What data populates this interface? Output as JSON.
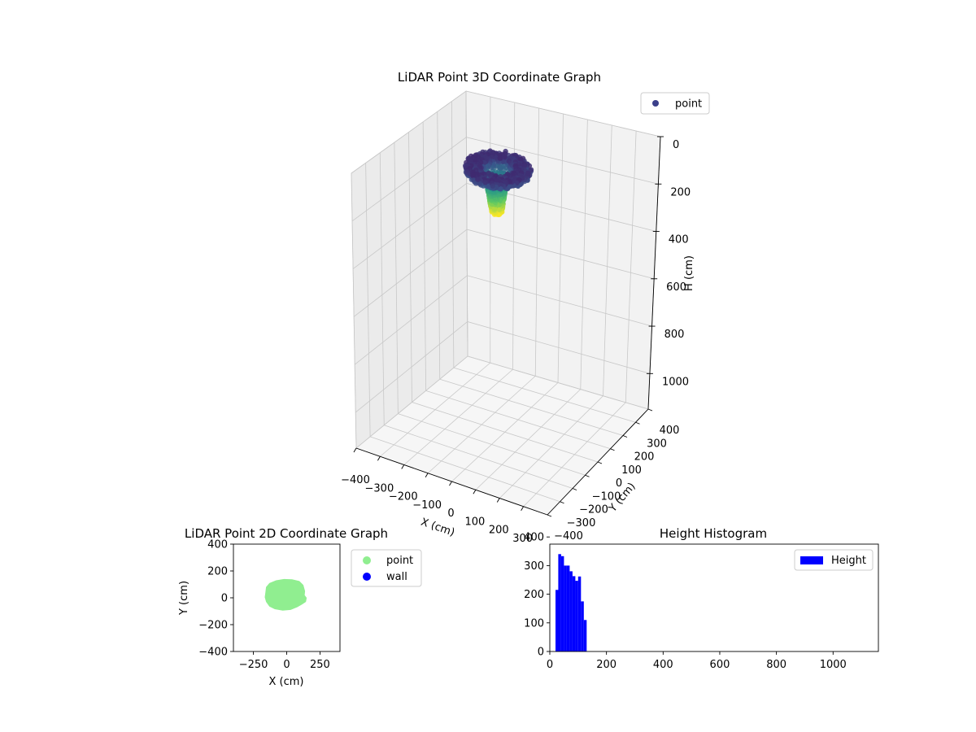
{
  "chart_data": [
    {
      "type": "scatter",
      "projection": "3d",
      "title": "LiDAR Point 3D Coordinate Graph",
      "xlabel": "X (cm)",
      "ylabel": "Y (cm)",
      "zlabel": "H (cm)",
      "xlim": [
        -400,
        400
      ],
      "ylim": [
        -400,
        400
      ],
      "zlim": [
        1150,
        0
      ],
      "z_inverted": true,
      "x_ticks": [
        "−400",
        "−300",
        "−200",
        "−100",
        "0",
        "100",
        "200",
        "300"
      ],
      "y_ticks": [
        "−400",
        "−300",
        "−200",
        "−100",
        "0",
        "100",
        "200",
        "300",
        "400"
      ],
      "z_ticks": [
        "0",
        "200",
        "400",
        "600",
        "800",
        "1000"
      ],
      "grid": true,
      "colormap": "viridis",
      "legend": {
        "placement": "top-right",
        "entries": [
          {
            "label": "point",
            "color": "#3b3f8a"
          }
        ]
      },
      "cloud": {
        "rim_radius": 120,
        "rim_height_range": [
          30,
          90
        ],
        "hole_radius": 60,
        "trunk_radius": 40,
        "trunk_height_range": [
          90,
          240
        ]
      }
    },
    {
      "type": "scatter",
      "title": "LiDAR Point 2D Coordinate Graph",
      "xlabel": "X (cm)",
      "ylabel": "Y (cm)",
      "xlim": [
        -400,
        400
      ],
      "ylim": [
        -400,
        400
      ],
      "x_ticks": [
        "−250",
        "0",
        "250"
      ],
      "y_ticks": [
        "−400",
        "−200",
        "0",
        "200",
        "400"
      ],
      "legend": {
        "placement": "outside-right",
        "entries": [
          {
            "label": "point",
            "color": "#90ee90"
          },
          {
            "label": "wall",
            "color": "#0000ff"
          }
        ]
      },
      "outline": [
        [
          -160,
          40
        ],
        [
          -155,
          80
        ],
        [
          -130,
          110
        ],
        [
          -80,
          130
        ],
        [
          -20,
          140
        ],
        [
          40,
          138
        ],
        [
          95,
          125
        ],
        [
          125,
          95
        ],
        [
          138,
          50
        ],
        [
          135,
          20
        ],
        [
          150,
          0
        ],
        [
          145,
          -30
        ],
        [
          115,
          -50
        ],
        [
          80,
          -70
        ],
        [
          30,
          -90
        ],
        [
          -30,
          -95
        ],
        [
          -90,
          -85
        ],
        [
          -130,
          -65
        ],
        [
          -155,
          -30
        ],
        [
          -165,
          5
        ]
      ]
    },
    {
      "type": "bar",
      "subtype": "histogram",
      "title": "Height Histogram",
      "xlim": [
        0,
        1160
      ],
      "ylim": [
        0,
        375
      ],
      "x_ticks": [
        "0",
        "200",
        "400",
        "600",
        "800",
        "1000"
      ],
      "y_ticks": [
        "0",
        "100",
        "200",
        "300",
        "400"
      ],
      "legend": {
        "placement": "top-right",
        "entries": [
          {
            "label": "Height",
            "color": "#0000ff"
          }
        ]
      },
      "bin_width": 10,
      "bins": [
        {
          "x": 20,
          "value": 215
        },
        {
          "x": 30,
          "value": 340
        },
        {
          "x": 40,
          "value": 333
        },
        {
          "x": 50,
          "value": 300
        },
        {
          "x": 60,
          "value": 300
        },
        {
          "x": 70,
          "value": 280
        },
        {
          "x": 80,
          "value": 263
        },
        {
          "x": 90,
          "value": 247
        },
        {
          "x": 100,
          "value": 262
        },
        {
          "x": 110,
          "value": 175
        },
        {
          "x": 120,
          "value": 110
        },
        {
          "x": 130,
          "value": 0
        }
      ]
    }
  ]
}
